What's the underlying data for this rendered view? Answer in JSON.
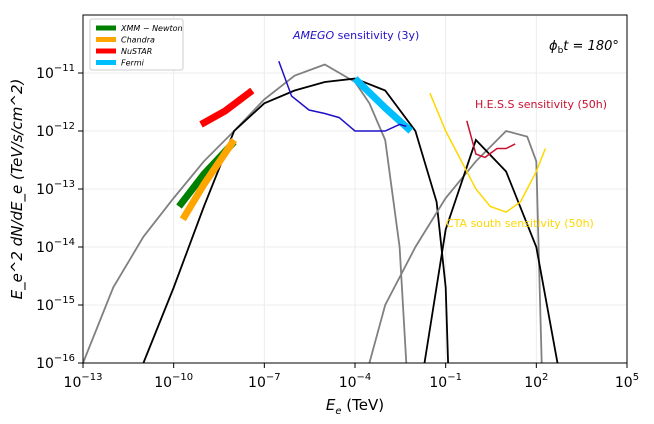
{
  "chart_data": {
    "type": "line",
    "xscale": "log",
    "yscale": "log",
    "xlim": [
      1e-13,
      100000.0
    ],
    "ylim": [
      1e-16,
      1e-10
    ],
    "xlabel_var": "E",
    "xlabel_sub": "e",
    "xlabel_unit": " (TeV)",
    "ylabel": "E_e^2 dN/dE_e (TeV/s/cm^2)",
    "grid": true,
    "legend_position": "top-left",
    "x_ticks": [
      {
        "label_base": "10",
        "label_exp": "−13",
        "value": 1e-13
      },
      {
        "label_base": "10",
        "label_exp": "−10",
        "value": 1e-10
      },
      {
        "label_base": "10",
        "label_exp": "−7",
        "value": 1e-07
      },
      {
        "label_base": "10",
        "label_exp": "−4",
        "value": 0.0001
      },
      {
        "label_base": "10",
        "label_exp": "−1",
        "value": 0.1
      },
      {
        "label_base": "10",
        "label_exp": "2",
        "value": 100.0
      },
      {
        "label_base": "10",
        "label_exp": "5",
        "value": 100000.0
      }
    ],
    "y_ticks": [
      {
        "label_base": "10",
        "label_exp": "−16",
        "value": 1e-16
      },
      {
        "label_base": "10",
        "label_exp": "−15",
        "value": 1e-15
      },
      {
        "label_base": "10",
        "label_exp": "−14",
        "value": 1e-14
      },
      {
        "label_base": "10",
        "label_exp": "−13",
        "value": 1e-13
      },
      {
        "label_base": "10",
        "label_exp": "−12",
        "value": 1e-12
      },
      {
        "label_base": "10",
        "label_exp": "−11",
        "value": 1e-11
      }
    ],
    "annotation_phase": {
      "lhs": "ϕ",
      "sub": "b",
      "rest": "t = 180°"
    },
    "legend": [
      {
        "name": "XMM − Newton",
        "color": "#008000"
      },
      {
        "name": "Chandra",
        "color": "#ffa500"
      },
      {
        "name": "NuSTAR",
        "color": "#ff0000"
      },
      {
        "name": "Fermi",
        "color": "#00bfff"
      }
    ],
    "observation_bands": [
      {
        "name": "XMM − Newton",
        "color": "#008000",
        "points": [
          [
            1.5e-10,
            5e-14
          ],
          [
            1e-09,
            1.8e-13
          ],
          [
            1e-08,
            6.5e-13
          ]
        ]
      },
      {
        "name": "Chandra",
        "color": "#ffa500",
        "points": [
          [
            2e-10,
            3e-14
          ],
          [
            1e-09,
            1.2e-13
          ],
          [
            1e-08,
            7e-13
          ]
        ]
      },
      {
        "name": "NuSTAR",
        "color": "#ff0000",
        "points": [
          [
            8e-10,
            1.3e-12
          ],
          [
            5e-09,
            2.2e-12
          ],
          [
            4e-08,
            5e-12
          ]
        ]
      },
      {
        "name": "Fermi",
        "color": "#00bfff",
        "points": [
          [
            0.0001,
            8e-12
          ],
          [
            0.001,
            2.5e-12
          ],
          [
            0.007,
            1e-12
          ]
        ]
      }
    ],
    "series": [
      {
        "color": "#808080",
        "points": [
          [
            1e-13,
            1e-16
          ],
          [
            1e-12,
            2e-15
          ],
          [
            1e-11,
            1.5e-14
          ],
          [
            1e-10,
            7e-14
          ],
          [
            1e-09,
            3e-13
          ],
          [
            1e-08,
            1e-12
          ],
          [
            1e-07,
            3.5e-12
          ],
          [
            1e-06,
            9e-12
          ],
          [
            1e-05,
            1.4e-11
          ],
          [
            0.0001,
            7e-12
          ],
          [
            0.0003,
            3e-12
          ],
          [
            0.001,
            7e-13
          ],
          [
            0.003,
            1e-14
          ],
          [
            0.005,
            1e-16
          ]
        ]
      },
      {
        "color": "#000000",
        "points": [
          [
            1e-11,
            1e-16
          ],
          [
            1e-10,
            2e-15
          ],
          [
            1e-09,
            5e-14
          ],
          [
            1e-08,
            1e-12
          ],
          [
            1e-07,
            3e-12
          ],
          [
            1e-06,
            5e-12
          ],
          [
            1e-05,
            7e-12
          ],
          [
            0.0001,
            8e-12
          ],
          [
            0.001,
            5e-12
          ],
          [
            0.01,
            1e-12
          ],
          [
            0.05,
            6e-14
          ],
          [
            0.1,
            2e-15
          ],
          [
            0.12,
            1e-16
          ]
        ]
      },
      {
        "color": "#808080",
        "points": [
          [
            0.0003,
            1e-16
          ],
          [
            0.001,
            1e-15
          ],
          [
            0.01,
            1e-14
          ],
          [
            0.1,
            7e-14
          ],
          [
            1,
            3e-13
          ],
          [
            10,
            1e-12
          ],
          [
            50,
            8e-13
          ],
          [
            100,
            3e-13
          ],
          [
            150,
            1e-16
          ]
        ]
      },
      {
        "color": "#000000",
        "points": [
          [
            0.02,
            1e-16
          ],
          [
            0.1,
            2e-14
          ],
          [
            1,
            7e-13
          ],
          [
            10,
            2e-13
          ],
          [
            100,
            1e-14
          ],
          [
            500,
            1e-16
          ]
        ]
      }
    ],
    "sensitivities": [
      {
        "name": "AMEGO sensitivity (3y)",
        "name_italic": "AMEGO",
        "name_rest": " sensitivity (3y)",
        "color": "#2010c8",
        "points": [
          [
            3e-07,
            1.6e-11
          ],
          [
            8e-07,
            4e-12
          ],
          [
            3e-06,
            2.3e-12
          ],
          [
            1e-05,
            2e-12
          ],
          [
            3e-05,
            1.7e-12
          ],
          [
            0.0001,
            1e-12
          ],
          [
            0.001,
            1e-12
          ],
          [
            0.003,
            1.3e-12
          ],
          [
            0.005,
            1.2e-12
          ]
        ]
      },
      {
        "name": "H.E.S.S sensitivity (50h)",
        "color": "#c8102e",
        "points": [
          [
            0.5,
            1.5e-12
          ],
          [
            1,
            4e-13
          ],
          [
            2,
            3.5e-13
          ],
          [
            5,
            5e-13
          ],
          [
            10,
            5e-13
          ],
          [
            20,
            6e-13
          ]
        ]
      },
      {
        "name": "CTA south sensitivity (50h)",
        "color": "#ffd700",
        "points": [
          [
            0.03,
            4.5e-12
          ],
          [
            0.1,
            1e-12
          ],
          [
            1,
            1e-13
          ],
          [
            3,
            5e-14
          ],
          [
            10,
            4e-14
          ],
          [
            30,
            6e-14
          ],
          [
            100,
            2e-13
          ],
          [
            200,
            5e-13
          ]
        ]
      }
    ]
  }
}
